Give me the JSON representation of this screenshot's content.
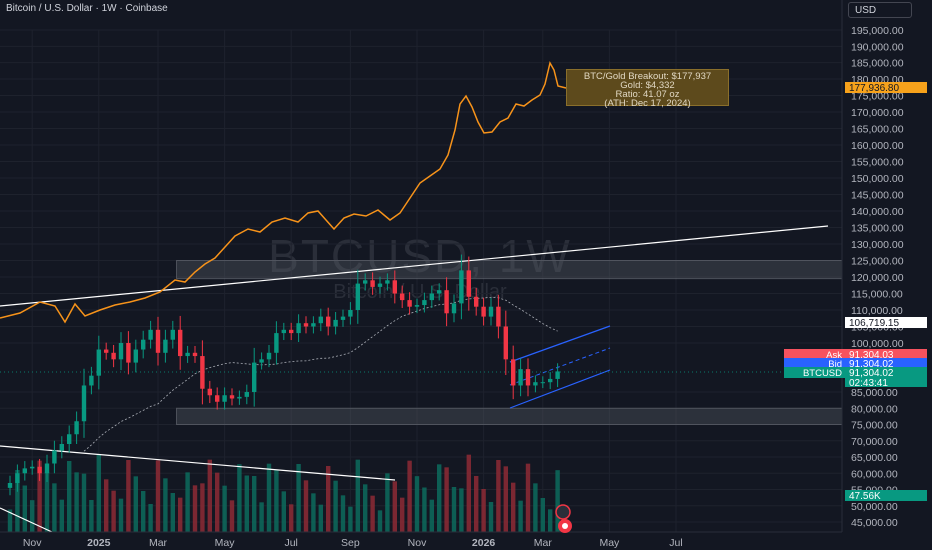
{
  "header": {
    "symbol_title": "Bitcoin / U.S. Dollar · 1W · Coinbase",
    "currency": "USD"
  },
  "watermark": {
    "symbol": "BTCUSD, 1W",
    "name": "Bitcoin / U.S. Dollar"
  },
  "annotation": {
    "lines": [
      "BTC/Gold Breakout: $177,937",
      "Gold: $4,332",
      "Ratio: 41.07 oz",
      "(ATH: Dec 17, 2024)"
    ]
  },
  "price_tags": [
    {
      "label": "",
      "value": "177,936.80",
      "color": "#f7a21b",
      "text": "#131722"
    },
    {
      "label": "",
      "value": "106,719.15",
      "color": "#ffffff",
      "text": "#131722"
    },
    {
      "label": "Ask",
      "value": "91,304.03",
      "color": "#f7525f",
      "text": "#ffffff"
    },
    {
      "label": "Bid",
      "value": "91,304.02",
      "color": "#2962ff",
      "text": "#ffffff"
    },
    {
      "label": "BTCUSD",
      "value": "91,304.02",
      "sub": "02:43:41",
      "color": "#089981",
      "text": "#ffffff"
    },
    {
      "label": "",
      "value": "47.56K",
      "color": "#089981",
      "text": "#ffffff"
    }
  ],
  "chart_data": {
    "type": "candlestick",
    "symbol": "BTCUSD",
    "interval": "1W",
    "y_ticks": [
      195000,
      190000,
      185000,
      180000,
      175000,
      170000,
      165000,
      160000,
      155000,
      150000,
      145000,
      140000,
      135000,
      130000,
      125000,
      120000,
      115000,
      110000,
      105000,
      100000,
      85000,
      80000,
      75000,
      70000,
      65000,
      60000,
      55000,
      50000,
      45000
    ],
    "y_tick_labels": [
      "195,000.00",
      "190,000.00",
      "185,000.00",
      "180,000.00",
      "175,000.00",
      "170,000.00",
      "165,000.00",
      "160,000.00",
      "155,000.00",
      "150,000.00",
      "145,000.00",
      "140,000.00",
      "135,000.00",
      "130,000.00",
      "125,000.00",
      "120,000.00",
      "115,000.00",
      "110,000.00",
      "105,000.00",
      "100,000.00",
      "85,000.00",
      "80,000.00",
      "75,000.00",
      "70,000.00",
      "65,000.00",
      "60,000.00",
      "55,000.00",
      "50,000.00",
      "45,000.00"
    ],
    "x_ticks": [
      {
        "label": "Nov",
        "week": 3,
        "bold": false
      },
      {
        "label": "2025",
        "week": 12,
        "bold": true
      },
      {
        "label": "Mar",
        "week": 20,
        "bold": false
      },
      {
        "label": "May",
        "week": 29,
        "bold": false
      },
      {
        "label": "Jul",
        "week": 38,
        "bold": false
      },
      {
        "label": "Sep",
        "week": 46,
        "bold": false
      },
      {
        "label": "Nov",
        "week": 55,
        "bold": false
      },
      {
        "label": "2026",
        "week": 64,
        "bold": true
      },
      {
        "label": "Mar",
        "week": 72,
        "bold": false
      },
      {
        "label": "May",
        "week": 81,
        "bold": false
      },
      {
        "label": "Jul",
        "week": 90,
        "bold": false
      }
    ],
    "candles_close": [
      57000,
      60000,
      61500,
      62000,
      60000,
      63000,
      67000,
      69000,
      72000,
      76000,
      87000,
      90000,
      98000,
      97000,
      95000,
      100000,
      94000,
      98000,
      101000,
      104000,
      97000,
      101000,
      104000,
      96000,
      97000,
      96000,
      86000,
      84000,
      82000,
      84000,
      83000,
      83500,
      85000,
      94000,
      95000,
      97000,
      103000,
      104000,
      103000,
      106000,
      105000,
      106000,
      108000,
      105000,
      107000,
      108000,
      110000,
      118000,
      119000,
      117000,
      118000,
      119000,
      115000,
      113000,
      111000,
      111500,
      113000,
      115000,
      116000,
      109000,
      112000,
      122000,
      114000,
      111000,
      108000,
      111000,
      105000,
      95000,
      87000,
      92000,
      87000,
      88000,
      88000,
      89000,
      91304
    ],
    "sma_line": "white dotted moving average",
    "btc_gold_line_color": "#f7931a",
    "rectangles": [
      [
        80000,
        75000
      ],
      [
        125000,
        119500
      ]
    ],
    "channel_color": "#2962ff",
    "volume_last": "47.56K"
  }
}
